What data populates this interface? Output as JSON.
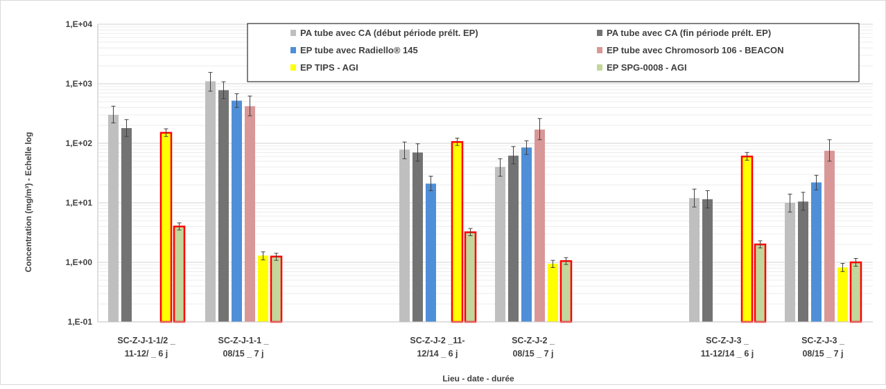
{
  "chart_data": {
    "type": "bar",
    "scale": "log",
    "ylim": [
      0.1,
      10000
    ],
    "y_ticks": [
      "1,E-01",
      "1,E+00",
      "1,E+01",
      "1,E+02",
      "1,E+03",
      "1,E+04"
    ],
    "xlabel": "Lieu - date - durée",
    "ylabel": "Concentration (mg/m³) - Echelle log",
    "legend_position": "top-right",
    "grid": true,
    "groups": [
      {
        "label_lines": [
          "SC-Z-J-1-1/2 _",
          "11-12/ _ 6 j"
        ]
      },
      {
        "label_lines": [
          "SC-Z-J-1-1 _",
          "08/15 _ 7 j"
        ]
      },
      {
        "label_lines": [
          "SC-Z-J-2 _11-",
          "12/14 _ 6 j"
        ]
      },
      {
        "label_lines": [
          "SC-Z-J-2 _",
          "08/15 _ 7 j"
        ]
      },
      {
        "label_lines": [
          "SC-Z-J-3 _",
          "11-12/14 _ 6 j"
        ]
      },
      {
        "label_lines": [
          "SC-Z-J-3 _",
          "08/15 _ 7 j"
        ]
      }
    ],
    "series": [
      {
        "name": "PA tube avec CA (début période prélt. EP)",
        "color": "#bfbfbf",
        "values": [
          300,
          1100,
          78,
          40,
          12,
          10
        ],
        "err": [
          [
            220,
            420
          ],
          [
            750,
            1550
          ],
          [
            55,
            105
          ],
          [
            28,
            55
          ],
          [
            8.5,
            17
          ],
          [
            7,
            14
          ]
        ]
      },
      {
        "name": "PA tube avec CA (fin période prélt. EP)",
        "color": "#737373",
        "values": [
          180,
          780,
          70,
          62,
          11.5,
          10.5
        ],
        "err": [
          [
            130,
            250
          ],
          [
            560,
            1080
          ],
          [
            50,
            98
          ],
          [
            45,
            88
          ],
          [
            8.2,
            16
          ],
          [
            7.5,
            15
          ]
        ]
      },
      {
        "name": "EP tube avec Radiello® 145",
        "color": "#4f8fd8",
        "values": [
          null,
          520,
          21,
          85,
          null,
          22
        ],
        "err": [
          null,
          [
            400,
            680
          ],
          [
            16,
            28
          ],
          [
            65,
            110
          ],
          null,
          [
            16.5,
            29
          ]
        ]
      },
      {
        "name": "EP tube avec Chromosorb 106  - BEACON",
        "color": "#d99797",
        "values": [
          null,
          420,
          null,
          170,
          null,
          75
        ],
        "err": [
          null,
          [
            290,
            620
          ],
          null,
          [
            115,
            260
          ],
          null,
          [
            50,
            115
          ]
        ]
      },
      {
        "name": "EP TIPS - AGI",
        "color": "#ffff00",
        "values": [
          150,
          1.3,
          105,
          0.95,
          60,
          0.82
        ],
        "err": [
          [
            130,
            175
          ],
          [
            1.1,
            1.5
          ],
          [
            92,
            122
          ],
          [
            0.82,
            1.08
          ],
          [
            52,
            70
          ],
          [
            0.7,
            0.96
          ]
        ],
        "outlined": [
          true,
          false,
          true,
          false,
          true,
          false
        ]
      },
      {
        "name": "EP SPG-0008 - AGI",
        "color": "#c3d69b",
        "values": [
          4.0,
          1.25,
          3.2,
          1.05,
          2.0,
          1.0
        ],
        "err": [
          [
            3.5,
            4.6
          ],
          [
            1.08,
            1.42
          ],
          [
            2.8,
            3.7
          ],
          [
            0.92,
            1.2
          ],
          [
            1.75,
            2.3
          ],
          [
            0.86,
            1.16
          ]
        ],
        "outlined": [
          true,
          true,
          true,
          true,
          true,
          true
        ]
      }
    ]
  }
}
